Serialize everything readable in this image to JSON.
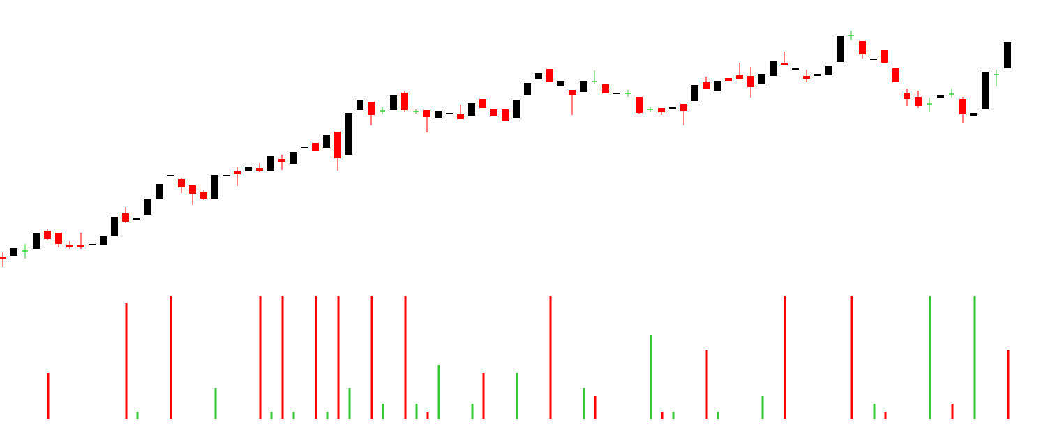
{
  "chart_data": {
    "type": "candlestick",
    "colors": {
      "up": "#000000",
      "down": "#ff0000",
      "doji": "#33cc33"
    },
    "ylim": [
      0,
      400
    ],
    "volume_ylim": [
      0,
      176
    ],
    "open": [
      31,
      33,
      40,
      43,
      69,
      66,
      49,
      48,
      48,
      48,
      61,
      94,
      85,
      92,
      114,
      147,
      143,
      134,
      125,
      114,
      147,
      154,
      154,
      159,
      154,
      172,
      165,
      187,
      195,
      188,
      211,
      178,
      242,
      254,
      241,
      242,
      267,
      240,
      242,
      231,
      236,
      236,
      234,
      258,
      243,
      243,
      230,
      264,
      286,
      301,
      276,
      271,
      268,
      283,
      279,
      265,
      266,
      261,
      243,
      245,
      243,
      251,
      255,
      282,
      270,
      288,
      292,
      291,
      279,
      291,
      310,
      299,
      291,
      291,
      292,
      311,
      349,
      341,
      314,
      328,
      302,
      267,
      261,
      251,
      259,
      265,
      258,
      233,
      243,
      293,
      302
    ],
    "close": [
      29,
      44,
      40,
      65,
      57,
      50,
      45,
      45,
      50,
      62,
      89,
      82,
      87,
      114,
      136,
      149,
      131,
      122,
      115,
      149,
      149,
      150,
      161,
      155,
      176,
      168,
      182,
      189,
      184,
      207,
      173,
      238,
      257,
      235,
      241,
      263,
      242,
      240,
      232,
      241,
      238,
      229,
      252,
      245,
      233,
      227,
      257,
      281,
      295,
      282,
      284,
      264,
      284,
      283,
      266,
      267,
      266,
      238,
      243,
      239,
      247,
      241,
      278,
      272,
      284,
      284,
      287,
      275,
      294,
      312,
      307,
      303,
      287,
      294,
      306,
      349,
      349,
      322,
      316,
      310,
      282,
      258,
      248,
      251,
      263,
      265,
      236,
      238,
      297,
      293,
      340
    ],
    "high": [
      38,
      44,
      50,
      65,
      72,
      66,
      54,
      66,
      50,
      62,
      89,
      103,
      87,
      114,
      136,
      149,
      145,
      134,
      128,
      149,
      149,
      160,
      161,
      166,
      176,
      178,
      182,
      189,
      195,
      207,
      211,
      238,
      257,
      254,
      246,
      263,
      269,
      243,
      242,
      241,
      238,
      250,
      252,
      258,
      243,
      243,
      257,
      281,
      295,
      301,
      284,
      271,
      284,
      299,
      279,
      267,
      271,
      261,
      246,
      245,
      247,
      251,
      278,
      290,
      284,
      288,
      310,
      304,
      294,
      312,
      326,
      303,
      300,
      294,
      306,
      349,
      356,
      341,
      316,
      328,
      302,
      273,
      270,
      260,
      263,
      273,
      261,
      238,
      297,
      300,
      340
    ],
    "low": [
      17,
      33,
      29,
      43,
      55,
      45,
      43,
      43,
      48,
      48,
      61,
      80,
      85,
      92,
      114,
      147,
      123,
      106,
      113,
      114,
      147,
      133,
      154,
      153,
      154,
      156,
      165,
      187,
      184,
      188,
      155,
      178,
      242,
      220,
      236,
      242,
      240,
      237,
      210,
      231,
      236,
      229,
      234,
      245,
      233,
      227,
      230,
      264,
      286,
      282,
      276,
      235,
      268,
      280,
      266,
      265,
      261,
      236,
      240,
      235,
      243,
      220,
      255,
      272,
      270,
      284,
      287,
      260,
      279,
      291,
      307,
      299,
      282,
      291,
      292,
      311,
      342,
      316,
      314,
      310,
      282,
      248,
      245,
      240,
      259,
      260,
      224,
      233,
      243,
      276,
      302
    ],
    "volume": [
      null,
      null,
      null,
      null,
      66,
      null,
      null,
      null,
      null,
      null,
      null,
      166,
      10,
      null,
      null,
      176,
      null,
      null,
      null,
      44,
      null,
      null,
      null,
      176,
      10,
      176,
      10,
      null,
      176,
      10,
      176,
      44,
      null,
      176,
      22,
      null,
      176,
      22,
      10,
      77,
      null,
      null,
      22,
      66,
      null,
      null,
      66,
      null,
      null,
      176,
      null,
      null,
      44,
      33,
      null,
      null,
      null,
      null,
      121,
      10,
      10,
      null,
      null,
      99,
      10,
      null,
      null,
      null,
      33,
      null,
      176,
      null,
      null,
      null,
      null,
      null,
      176,
      null,
      22,
      10,
      null,
      null,
      null,
      176,
      null,
      22,
      null,
      176,
      null,
      null,
      99
    ],
    "volume_colors": [
      null,
      null,
      null,
      null,
      "#ff0000",
      null,
      null,
      null,
      null,
      null,
      null,
      "#ff0000",
      "#33cc33",
      null,
      null,
      "#ff0000",
      null,
      null,
      null,
      "#33cc33",
      null,
      null,
      null,
      "#ff0000",
      "#33cc33",
      "#ff0000",
      "#33cc33",
      null,
      "#ff0000",
      "#33cc33",
      "#ff0000",
      "#33cc33",
      null,
      "#ff0000",
      "#33cc33",
      null,
      "#ff0000",
      "#33cc33",
      "#ff0000",
      "#33cc33",
      null,
      null,
      "#33cc33",
      "#ff0000",
      null,
      null,
      "#33cc33",
      null,
      null,
      "#ff0000",
      null,
      null,
      "#33cc33",
      "#ff0000",
      null,
      null,
      null,
      null,
      "#33cc33",
      "#ff0000",
      "#33cc33",
      null,
      null,
      "#ff0000",
      "#33cc33",
      null,
      null,
      null,
      "#33cc33",
      null,
      "#ff0000",
      null,
      null,
      null,
      null,
      null,
      "#ff0000",
      null,
      "#33cc33",
      "#ff0000",
      null,
      null,
      null,
      "#33cc33",
      null,
      "#ff0000",
      null,
      "#33cc33",
      null,
      null,
      "#ff0000"
    ]
  }
}
